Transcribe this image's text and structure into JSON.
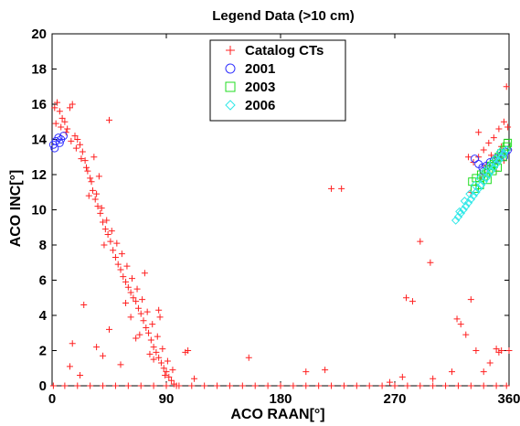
{
  "chart_data": {
    "type": "scatter",
    "title": "Legend Data (>10 cm)",
    "xlabel": "ACO RAAN[°]",
    "ylabel": "ACO INC[°]",
    "xlim": [
      0,
      360
    ],
    "ylim": [
      0,
      20
    ],
    "xticks": [
      0,
      90,
      180,
      270,
      360
    ],
    "yticks": [
      0,
      2,
      4,
      6,
      8,
      10,
      12,
      14,
      16,
      18,
      20
    ],
    "grid": false,
    "legend": "top-center",
    "series": [
      {
        "name": "Catalog CTs",
        "marker": "plus",
        "color": "#ff2020",
        "points": [
          [
            2,
            15.8
          ],
          [
            4,
            16.1
          ],
          [
            6,
            15.6
          ],
          [
            8,
            15.2
          ],
          [
            10,
            15.0
          ],
          [
            12,
            14.6
          ],
          [
            14,
            15.8
          ],
          [
            16,
            16.0
          ],
          [
            18,
            14.2
          ],
          [
            20,
            14.0
          ],
          [
            22,
            13.7
          ],
          [
            24,
            13.3
          ],
          [
            26,
            12.8
          ],
          [
            28,
            12.2
          ],
          [
            30,
            11.8
          ],
          [
            32,
            11.1
          ],
          [
            34,
            10.6
          ],
          [
            36,
            10.2
          ],
          [
            38,
            9.8
          ],
          [
            40,
            9.3
          ],
          [
            42,
            8.9
          ],
          [
            44,
            8.6
          ],
          [
            46,
            8.2
          ],
          [
            48,
            7.7
          ],
          [
            50,
            7.3
          ],
          [
            52,
            6.9
          ],
          [
            54,
            6.6
          ],
          [
            56,
            6.2
          ],
          [
            58,
            5.9
          ],
          [
            60,
            5.6
          ],
          [
            62,
            5.3
          ],
          [
            64,
            5.0
          ],
          [
            66,
            4.8
          ],
          [
            68,
            4.4
          ],
          [
            70,
            4.1
          ],
          [
            72,
            3.7
          ],
          [
            74,
            3.3
          ],
          [
            76,
            3.0
          ],
          [
            78,
            2.6
          ],
          [
            80,
            2.2
          ],
          [
            82,
            1.9
          ],
          [
            84,
            1.6
          ],
          [
            86,
            1.3
          ],
          [
            88,
            1.0
          ],
          [
            90,
            0.8
          ],
          [
            92,
            0.5
          ],
          [
            94,
            0.3
          ],
          [
            96,
            0.1
          ],
          [
            98,
            0.0
          ],
          [
            100,
            0.0
          ],
          [
            3,
            14.9
          ],
          [
            7,
            14.7
          ],
          [
            11,
            14.4
          ],
          [
            15,
            13.9
          ],
          [
            19,
            13.5
          ],
          [
            23,
            12.9
          ],
          [
            27,
            12.4
          ],
          [
            31,
            11.6
          ],
          [
            35,
            10.9
          ],
          [
            39,
            10.1
          ],
          [
            43,
            9.4
          ],
          [
            47,
            8.8
          ],
          [
            51,
            8.1
          ],
          [
            55,
            7.5
          ],
          [
            59,
            6.8
          ],
          [
            63,
            6.1
          ],
          [
            67,
            5.5
          ],
          [
            71,
            4.9
          ],
          [
            75,
            4.2
          ],
          [
            79,
            3.5
          ],
          [
            83,
            2.8
          ],
          [
            87,
            2.1
          ],
          [
            91,
            1.4
          ],
          [
            95,
            0.9
          ],
          [
            33,
            13.0
          ],
          [
            29,
            10.8
          ],
          [
            37,
            11.9
          ],
          [
            41,
            8.0
          ],
          [
            45,
            15.1
          ],
          [
            58,
            4.7
          ],
          [
            62,
            3.9
          ],
          [
            69,
            2.9
          ],
          [
            73,
            6.4
          ],
          [
            77,
            1.8
          ],
          [
            85,
            3.9
          ],
          [
            89,
            0.6
          ],
          [
            16,
            2.4
          ],
          [
            14,
            1.1
          ],
          [
            22,
            0.6
          ],
          [
            35,
            2.2
          ],
          [
            40,
            1.7
          ],
          [
            45,
            3.2
          ],
          [
            25,
            4.6
          ],
          [
            54,
            1.2
          ],
          [
            66,
            2.7
          ],
          [
            80,
            1.5
          ],
          [
            84,
            4.3
          ],
          [
            105,
            1.9
          ],
          [
            107,
            2.0
          ],
          [
            112,
            0.4
          ],
          [
            1,
            0.0
          ],
          [
            10,
            0.0
          ],
          [
            20,
            0.0
          ],
          [
            30,
            0.0
          ],
          [
            40,
            0.0
          ],
          [
            50,
            0.0
          ],
          [
            60,
            0.0
          ],
          [
            70,
            0.0
          ],
          [
            80,
            0.0
          ],
          [
            90,
            0.0
          ],
          [
            110,
            0.0
          ],
          [
            120,
            0.0
          ],
          [
            130,
            0.0
          ],
          [
            140,
            0.0
          ],
          [
            150,
            0.0
          ],
          [
            160,
            0.0
          ],
          [
            170,
            0.0
          ],
          [
            180,
            0.0
          ],
          [
            190,
            0.0
          ],
          [
            200,
            0.0
          ],
          [
            210,
            0.0
          ],
          [
            220,
            0.0
          ],
          [
            230,
            0.0
          ],
          [
            240,
            0.0
          ],
          [
            250,
            0.0
          ],
          [
            260,
            0.0
          ],
          [
            270,
            0.0
          ],
          [
            280,
            0.0
          ],
          [
            290,
            0.0
          ],
          [
            300,
            0.0
          ],
          [
            310,
            0.0
          ],
          [
            320,
            0.0
          ],
          [
            330,
            0.0
          ],
          [
            340,
            0.0
          ],
          [
            350,
            0.0
          ],
          [
            358,
            0.0
          ],
          [
            155,
            1.6
          ],
          [
            200,
            0.8
          ],
          [
            215,
            0.9
          ],
          [
            220,
            11.2
          ],
          [
            228,
            11.2
          ],
          [
            266,
            0.2
          ],
          [
            276,
            0.5
          ],
          [
            279,
            5.0
          ],
          [
            284,
            4.8
          ],
          [
            290,
            8.2
          ],
          [
            298,
            7.0
          ],
          [
            300,
            0.4
          ],
          [
            315,
            0.8
          ],
          [
            319,
            3.8
          ],
          [
            322,
            3.5
          ],
          [
            326,
            2.9
          ],
          [
            330,
            4.9
          ],
          [
            334,
            2.0
          ],
          [
            340,
            0.8
          ],
          [
            345,
            1.3
          ],
          [
            350,
            2.1
          ],
          [
            354,
            2.0
          ],
          [
            356,
            15.0
          ],
          [
            358,
            17.0
          ],
          [
            352,
            14.6
          ],
          [
            348,
            14.1
          ],
          [
            344,
            13.8
          ],
          [
            340,
            13.4
          ],
          [
            336,
            13.0
          ],
          [
            332,
            12.7
          ],
          [
            336,
            14.4
          ],
          [
            354,
            13.6
          ],
          [
            356,
            12.8
          ],
          [
            350,
            12.2
          ],
          [
            346,
            13.1
          ],
          [
            342,
            12.5
          ],
          [
            338,
            11.8
          ],
          [
            334,
            11.4
          ],
          [
            330,
            11.0
          ],
          [
            360,
            13.4
          ],
          [
            360,
            2.0
          ],
          [
            352,
            1.9
          ],
          [
            359,
            14.7
          ],
          [
            328,
            13.0
          ]
        ]
      },
      {
        "name": "2001",
        "marker": "circle",
        "color": "#3030ff",
        "points": [
          [
            1,
            13.7
          ],
          [
            3,
            13.9
          ],
          [
            5,
            14.1
          ],
          [
            7,
            14.0
          ],
          [
            9,
            14.2
          ],
          [
            2,
            13.5
          ],
          [
            6,
            13.8
          ],
          [
            333,
            12.9
          ],
          [
            336,
            12.6
          ],
          [
            339,
            12.4
          ],
          [
            342,
            12.5
          ],
          [
            345,
            12.7
          ],
          [
            348,
            12.8
          ],
          [
            351,
            13.0
          ],
          [
            354,
            13.1
          ],
          [
            357,
            13.3
          ],
          [
            359,
            13.4
          ],
          [
            340,
            12.2
          ],
          [
            350,
            12.9
          ],
          [
            356,
            13.0
          ]
        ]
      },
      {
        "name": "2003",
        "marker": "square",
        "color": "#20dd20",
        "points": [
          [
            331,
            11.6
          ],
          [
            334,
            11.8
          ],
          [
            337,
            11.4
          ],
          [
            340,
            11.9
          ],
          [
            342,
            12.1
          ],
          [
            344,
            12.3
          ],
          [
            346,
            12.5
          ],
          [
            348,
            12.6
          ],
          [
            350,
            12.8
          ],
          [
            352,
            13.0
          ],
          [
            354,
            13.2
          ],
          [
            356,
            13.4
          ],
          [
            358,
            13.6
          ],
          [
            333,
            11.2
          ],
          [
            338,
            12.0
          ],
          [
            343,
            11.7
          ],
          [
            347,
            12.2
          ],
          [
            351,
            12.4
          ],
          [
            355,
            13.0
          ],
          [
            359,
            13.8
          ]
        ]
      },
      {
        "name": "2006",
        "marker": "diamond",
        "color": "#30e8e8",
        "points": [
          [
            318,
            9.4
          ],
          [
            320,
            9.6
          ],
          [
            322,
            9.8
          ],
          [
            324,
            10.0
          ],
          [
            326,
            10.2
          ],
          [
            328,
            10.4
          ],
          [
            330,
            10.6
          ],
          [
            332,
            10.8
          ],
          [
            334,
            11.0
          ],
          [
            336,
            11.2
          ],
          [
            338,
            11.4
          ],
          [
            340,
            11.6
          ],
          [
            342,
            11.8
          ],
          [
            344,
            12.0
          ],
          [
            346,
            12.2
          ],
          [
            348,
            12.4
          ],
          [
            350,
            12.6
          ],
          [
            352,
            12.8
          ],
          [
            354,
            13.0
          ],
          [
            356,
            13.2
          ],
          [
            358,
            13.4
          ],
          [
            321,
            9.9
          ],
          [
            325,
            10.5
          ],
          [
            329,
            10.9
          ],
          [
            333,
            11.4
          ],
          [
            337,
            11.8
          ],
          [
            341,
            12.2
          ],
          [
            345,
            12.5
          ],
          [
            349,
            12.9
          ],
          [
            353,
            13.3
          ]
        ]
      }
    ]
  }
}
